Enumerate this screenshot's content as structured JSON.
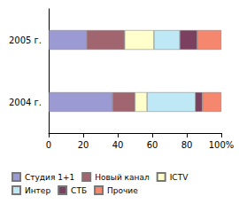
{
  "chart_data": {
    "type": "bar",
    "orientation": "horizontal",
    "stacked": true,
    "categories": [
      "2004 г.",
      "2005 г."
    ],
    "series": [
      {
        "name": "Студия 1+1",
        "color": "#9c9ad2",
        "values": [
          37,
          22
        ]
      },
      {
        "name": "Новый канал",
        "color": "#a0656f",
        "values": [
          13,
          22
        ]
      },
      {
        "name": "ICTV",
        "color": "#ffffcc",
        "values": [
          7,
          17
        ]
      },
      {
        "name": "Интер",
        "color": "#bfe8f6",
        "values": [
          28,
          15
        ]
      },
      {
        "name": "СТБ",
        "color": "#7b3f5f",
        "values": [
          4,
          10
        ]
      },
      {
        "name": "Прочие",
        "color": "#f5876f",
        "values": [
          11,
          14
        ]
      }
    ],
    "xlim": [
      0,
      100
    ],
    "xticks": [
      0,
      20,
      40,
      60,
      80,
      {
        "value": 100,
        "label": "100%"
      }
    ],
    "grid": false,
    "legend": "bottom"
  }
}
